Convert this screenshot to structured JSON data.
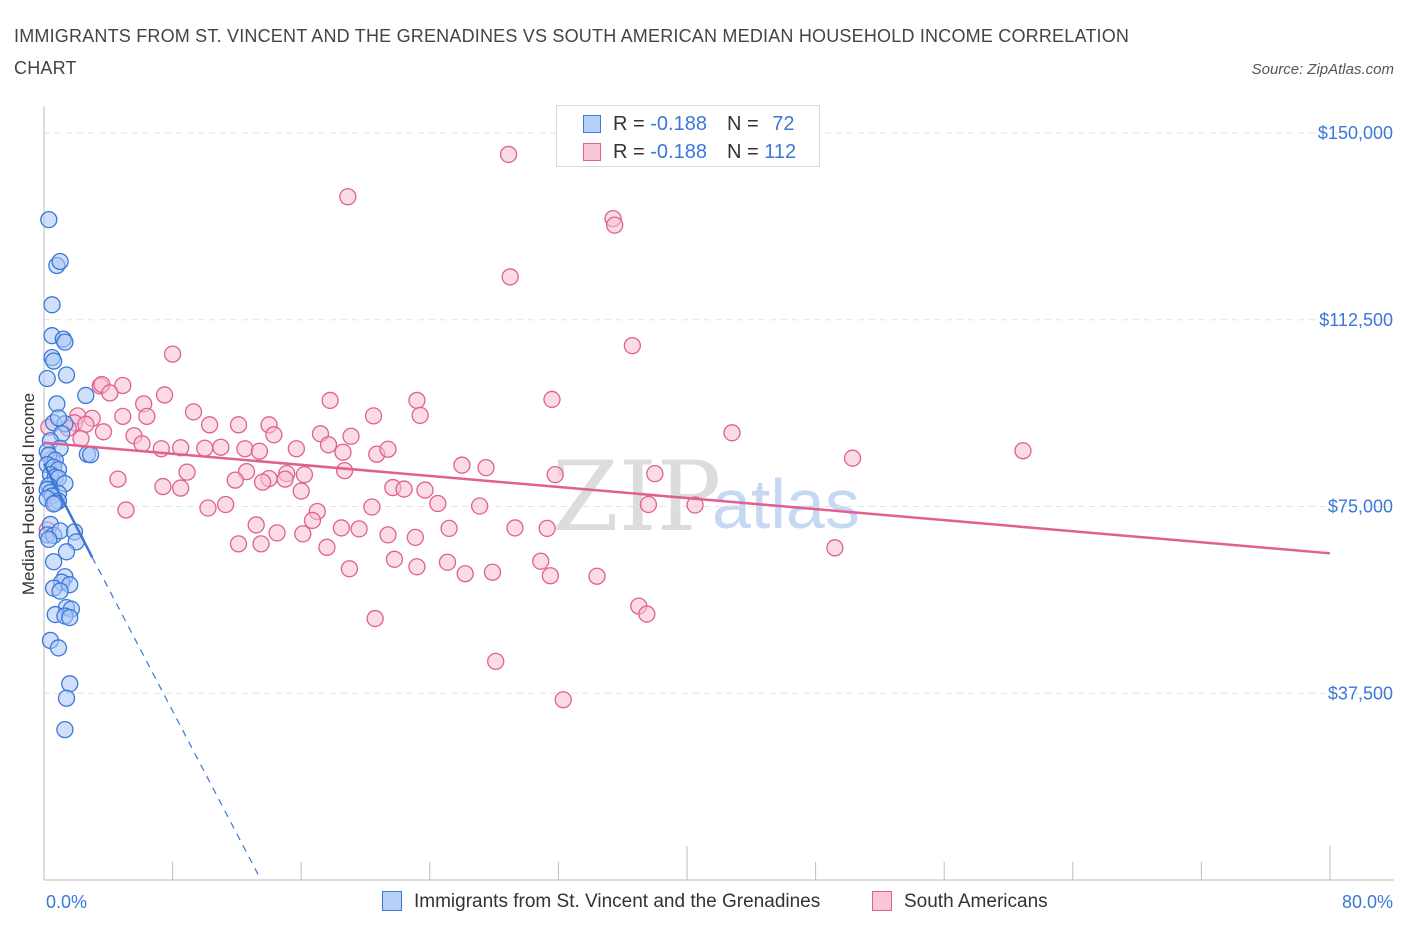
{
  "title": "IMMIGRANTS FROM ST. VINCENT AND THE GRENADINES VS SOUTH AMERICAN MEDIAN HOUSEHOLD INCOME CORRELATION CHART",
  "source_label": "Source:",
  "source_value": "ZipAtlas.com",
  "watermark_zip": "ZIP",
  "watermark_atlas": "atlas",
  "colors": {
    "blue": "#3b78d8",
    "blue_fill": "#a9c7f5",
    "pink": "#e0608f",
    "pink_fill": "#f7bfd1",
    "grid": "#e3e3e3",
    "axis_text": "#3b78d8"
  },
  "legend": {
    "rows": [
      {
        "r_label": "R =",
        "r_value": "-0.188",
        "n_label": "N =",
        "n_value": "72"
      },
      {
        "r_label": "R =",
        "r_value": "-0.188",
        "n_label": "N =",
        "n_value": "112"
      }
    ]
  },
  "bottom_legend": {
    "series1": "Immigrants from St. Vincent and the Grenadines",
    "series2": "South Americans"
  },
  "chart_data": {
    "type": "scatter",
    "title": "IMMIGRANTS FROM ST. VINCENT AND THE GRENADINES VS SOUTH AMERICAN MEDIAN HOUSEHOLD INCOME CORRELATION CHART",
    "xlabel": "",
    "ylabel": "Median Household Income",
    "xlim": [
      0,
      80
    ],
    "ylim": [
      0,
      150000
    ],
    "x_tick_labels": [
      "0.0%",
      "80.0%"
    ],
    "y_ticks": [
      37500,
      75000,
      112500,
      150000
    ],
    "y_tick_labels": [
      "$37,500",
      "$75,000",
      "$112,500",
      "$150,000"
    ],
    "grid": true,
    "series": [
      {
        "name": "Immigrants from St. Vincent and the Grenadines",
        "color": "blue",
        "points": [
          [
            0.3,
            132600
          ],
          [
            0.8,
            123400
          ],
          [
            1.0,
            124200
          ],
          [
            0.5,
            115500
          ],
          [
            0.5,
            109300
          ],
          [
            1.2,
            108600
          ],
          [
            1.3,
            108000
          ],
          [
            0.5,
            104900
          ],
          [
            0.6,
            104200
          ],
          [
            1.4,
            101400
          ],
          [
            0.2,
            100700
          ],
          [
            2.6,
            97300
          ],
          [
            0.8,
            95600
          ],
          [
            0.6,
            91800
          ],
          [
            1.3,
            91600
          ],
          [
            0.9,
            92800
          ],
          [
            1.1,
            89600
          ],
          [
            0.4,
            88200
          ],
          [
            1.0,
            86700
          ],
          [
            0.2,
            86100
          ],
          [
            0.3,
            85300
          ],
          [
            0.7,
            84300
          ],
          [
            2.7,
            85500
          ],
          [
            2.9,
            85400
          ],
          [
            0.2,
            83400
          ],
          [
            0.6,
            82900
          ],
          [
            0.9,
            82400
          ],
          [
            0.4,
            81400
          ],
          [
            0.7,
            80900
          ],
          [
            0.9,
            80700
          ],
          [
            1.3,
            79600
          ],
          [
            0.3,
            79200
          ],
          [
            0.2,
            78400
          ],
          [
            0.4,
            77800
          ],
          [
            0.9,
            77600
          ],
          [
            0.5,
            77100
          ],
          [
            0.2,
            76600
          ],
          [
            0.9,
            76100
          ],
          [
            0.7,
            75700
          ],
          [
            0.6,
            75500
          ],
          [
            0.4,
            71400
          ],
          [
            0.2,
            69300
          ],
          [
            0.6,
            69200
          ],
          [
            1.0,
            70100
          ],
          [
            1.9,
            69900
          ],
          [
            2.0,
            67900
          ],
          [
            0.3,
            68400
          ],
          [
            1.4,
            65900
          ],
          [
            0.6,
            63900
          ],
          [
            1.3,
            60900
          ],
          [
            1.1,
            59800
          ],
          [
            1.6,
            59300
          ],
          [
            0.6,
            58600
          ],
          [
            1.0,
            58000
          ],
          [
            1.4,
            54700
          ],
          [
            1.7,
            54400
          ],
          [
            0.7,
            53300
          ],
          [
            1.3,
            53000
          ],
          [
            1.6,
            52700
          ],
          [
            0.4,
            48100
          ],
          [
            0.9,
            46600
          ],
          [
            1.6,
            39400
          ],
          [
            1.4,
            36500
          ],
          [
            1.3,
            30200
          ]
        ]
      },
      {
        "name": "South Americans",
        "color": "pink",
        "points": [
          [
            28.9,
            145700
          ],
          [
            18.9,
            137200
          ],
          [
            35.4,
            132800
          ],
          [
            35.5,
            131500
          ],
          [
            29.0,
            121100
          ],
          [
            36.6,
            107300
          ],
          [
            8.0,
            105600
          ],
          [
            3.5,
            99200
          ],
          [
            3.6,
            99500
          ],
          [
            4.9,
            99300
          ],
          [
            4.1,
            97800
          ],
          [
            7.5,
            97400
          ],
          [
            17.8,
            96300
          ],
          [
            23.2,
            96300
          ],
          [
            31.6,
            96500
          ],
          [
            6.2,
            95600
          ],
          [
            9.3,
            94000
          ],
          [
            2.1,
            93200
          ],
          [
            4.9,
            93100
          ],
          [
            3.0,
            92700
          ],
          [
            6.4,
            93100
          ],
          [
            20.5,
            93200
          ],
          [
            23.4,
            93300
          ],
          [
            1.9,
            91800
          ],
          [
            2.6,
            91500
          ],
          [
            10.3,
            91400
          ],
          [
            12.1,
            91400
          ],
          [
            14.0,
            91400
          ],
          [
            0.3,
            90900
          ],
          [
            1.5,
            90700
          ],
          [
            3.7,
            90000
          ],
          [
            5.6,
            89200
          ],
          [
            14.3,
            89400
          ],
          [
            17.2,
            89600
          ],
          [
            19.1,
            89100
          ],
          [
            42.8,
            89800
          ],
          [
            2.3,
            88600
          ],
          [
            6.1,
            87600
          ],
          [
            7.3,
            86600
          ],
          [
            8.5,
            86800
          ],
          [
            10.0,
            86700
          ],
          [
            11.0,
            86900
          ],
          [
            12.5,
            86600
          ],
          [
            13.4,
            86100
          ],
          [
            15.7,
            86600
          ],
          [
            17.7,
            87400
          ],
          [
            18.6,
            85900
          ],
          [
            20.7,
            85500
          ],
          [
            21.4,
            86500
          ],
          [
            60.9,
            86200
          ],
          [
            0.5,
            84500
          ],
          [
            50.3,
            84700
          ],
          [
            26.0,
            83300
          ],
          [
            27.5,
            82800
          ],
          [
            18.7,
            82200
          ],
          [
            8.9,
            81900
          ],
          [
            12.6,
            82000
          ],
          [
            14.0,
            80600
          ],
          [
            15.1,
            81600
          ],
          [
            16.2,
            81400
          ],
          [
            31.8,
            81400
          ],
          [
            38.0,
            81600
          ],
          [
            4.6,
            80500
          ],
          [
            11.9,
            80300
          ],
          [
            13.6,
            79900
          ],
          [
            15.0,
            80500
          ],
          [
            7.4,
            79000
          ],
          [
            8.5,
            78700
          ],
          [
            21.7,
            78800
          ],
          [
            22.4,
            78500
          ],
          [
            16.0,
            78100
          ],
          [
            23.7,
            78300
          ],
          [
            24.5,
            75600
          ],
          [
            27.1,
            75100
          ],
          [
            37.6,
            75400
          ],
          [
            40.5,
            75300
          ],
          [
            5.1,
            74300
          ],
          [
            10.2,
            74700
          ],
          [
            11.3,
            75400
          ],
          [
            17.0,
            74000
          ],
          [
            20.4,
            74900
          ],
          [
            13.2,
            71300
          ],
          [
            16.7,
            72200
          ],
          [
            18.5,
            70700
          ],
          [
            19.6,
            70500
          ],
          [
            25.2,
            70600
          ],
          [
            29.3,
            70700
          ],
          [
            31.3,
            70600
          ],
          [
            14.5,
            69700
          ],
          [
            16.1,
            69500
          ],
          [
            21.4,
            69300
          ],
          [
            23.1,
            68800
          ],
          [
            12.1,
            67500
          ],
          [
            13.5,
            67500
          ],
          [
            17.6,
            66800
          ],
          [
            21.8,
            64400
          ],
          [
            25.1,
            63800
          ],
          [
            30.9,
            64000
          ],
          [
            23.2,
            62900
          ],
          [
            27.9,
            61800
          ],
          [
            31.5,
            61100
          ],
          [
            26.2,
            61500
          ],
          [
            19.0,
            62500
          ],
          [
            34.4,
            61000
          ],
          [
            37.0,
            55000
          ],
          [
            37.5,
            53400
          ],
          [
            20.6,
            52500
          ],
          [
            28.1,
            43900
          ],
          [
            32.3,
            36200
          ],
          [
            49.2,
            66700
          ],
          [
            0.2,
            70300
          ]
        ]
      }
    ],
    "trend_lines": [
      {
        "series": "Immigrants from St. Vincent and the Grenadines",
        "solid": [
          [
            0,
            83600
          ],
          [
            3.0,
            64800
          ]
        ],
        "dashed": [
          [
            3.0,
            64800
          ],
          [
            13.5,
            0
          ]
        ]
      },
      {
        "series": "South Americans",
        "solid": [
          [
            0,
            87800
          ],
          [
            80,
            65600
          ]
        ]
      }
    ]
  }
}
